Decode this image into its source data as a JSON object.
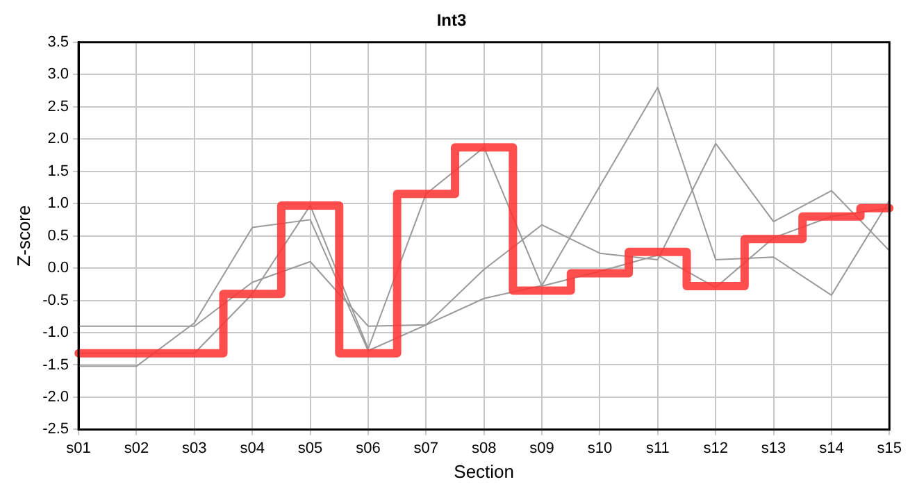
{
  "chart_data": {
    "type": "line",
    "title": "Int3",
    "xlabel": "Section",
    "ylabel": "Z-score",
    "categories": [
      "s01",
      "s02",
      "s03",
      "s04",
      "s05",
      "s06",
      "s07",
      "s08",
      "s09",
      "s10",
      "s11",
      "s12",
      "s13",
      "s14",
      "s15"
    ],
    "series": [
      {
        "color": "#999999",
        "values": [
          -1.52,
          -1.52,
          -0.85,
          0.63,
          0.75,
          -1.28,
          -0.88,
          -0.47,
          -0.27,
          1.27,
          2.8,
          0.13,
          0.17,
          -0.42,
          1.05
        ]
      },
      {
        "color": "#999999",
        "values": [
          -0.9,
          -0.9,
          -0.9,
          -0.22,
          0.1,
          -0.9,
          -0.88,
          -0.02,
          0.67,
          0.23,
          0.13,
          1.93,
          0.72,
          1.2,
          0.27
        ]
      },
      {
        "color": "#999999",
        "values": [
          -1.32,
          -1.32,
          -1.32,
          -0.4,
          0.97,
          -1.25,
          1.15,
          1.87,
          -0.28,
          -0.05,
          0.2,
          -0.3,
          0.47,
          0.8,
          0.93
        ]
      },
      {
        "type": "step",
        "color": "#ff3333",
        "values": [
          -1.32,
          -1.32,
          -1.32,
          -0.4,
          0.97,
          -1.32,
          1.15,
          1.87,
          -0.35,
          -0.08,
          0.25,
          -0.28,
          0.45,
          0.8,
          0.93
        ]
      }
    ],
    "ylim": [
      -2.5,
      3.5
    ],
    "yticks": [
      {
        "value": -2.5,
        "label": "-2.5"
      },
      {
        "value": -2,
        "label": "-2.0"
      },
      {
        "value": -1.5,
        "label": "-1.5"
      },
      {
        "value": -1,
        "label": "-1.0"
      },
      {
        "value": -0.5,
        "label": "-0.5"
      },
      {
        "value": 0,
        "label": "0.0"
      },
      {
        "value": 0.5,
        "label": "0.5"
      },
      {
        "value": 1,
        "label": "1.0"
      },
      {
        "value": 1.5,
        "label": "1.5"
      },
      {
        "value": 2,
        "label": "2.0"
      },
      {
        "value": 2.5,
        "label": "2.5"
      },
      {
        "value": 3,
        "label": "3.0"
      },
      {
        "value": 3.5,
        "label": "3.5"
      }
    ],
    "grid": true,
    "legend": false,
    "marker": "none",
    "line_style": "solid"
  }
}
